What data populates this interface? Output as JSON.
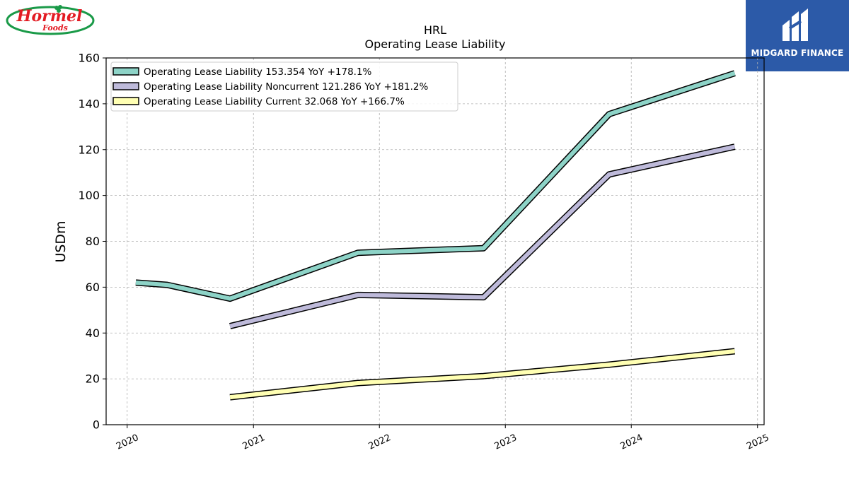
{
  "logos": {
    "left": {
      "word1": "Hormel",
      "word2": "Foods",
      "colors": {
        "ring": "#1a9a48",
        "text": "#e31b23",
        "leaf": "#1a9a48"
      }
    },
    "right": {
      "brand": "MIDGARD FINANCE",
      "background": "#2c5aa8"
    }
  },
  "chart_data": {
    "type": "line",
    "title": "HRL",
    "subtitle": "Operating Lease Liability",
    "xlabel": "",
    "ylabel": "USDm",
    "ylim": [
      0,
      160
    ],
    "yticks": [
      0,
      20,
      40,
      60,
      80,
      100,
      120,
      140,
      160
    ],
    "xlim": [
      "2019-11-01",
      "2025-01-20"
    ],
    "xticks": [
      {
        "date": "2020-01-01",
        "label": "2020"
      },
      {
        "date": "2021-01-01",
        "label": "2021"
      },
      {
        "date": "2022-01-01",
        "label": "2022"
      },
      {
        "date": "2023-01-01",
        "label": "2023"
      },
      {
        "date": "2024-01-01",
        "label": "2024"
      },
      {
        "date": "2025-01-01",
        "label": "2025"
      }
    ],
    "grid": true,
    "legend_position": "top-left",
    "series": [
      {
        "name": "Operating Lease Liability  153.354 YoY +178.1%",
        "color": "#8dd3c7",
        "points": [
          {
            "x": "2020-01-26",
            "y": 62.0
          },
          {
            "x": "2020-04-26",
            "y": 61.0
          },
          {
            "x": "2020-10-25",
            "y": 55.0
          },
          {
            "x": "2021-10-31",
            "y": 75.0
          },
          {
            "x": "2022-10-30",
            "y": 77.0
          },
          {
            "x": "2023-10-29",
            "y": 135.5
          },
          {
            "x": "2024-10-27",
            "y": 153.354
          }
        ]
      },
      {
        "name": "Operating Lease Liability Noncurrent  121.286 YoY +181.2%",
        "color": "#bebada",
        "points": [
          {
            "x": "2020-10-25",
            "y": 43.0
          },
          {
            "x": "2021-10-31",
            "y": 56.6
          },
          {
            "x": "2022-10-30",
            "y": 55.6
          },
          {
            "x": "2023-10-29",
            "y": 109.2
          },
          {
            "x": "2024-10-27",
            "y": 121.286
          }
        ]
      },
      {
        "name": "Operating Lease Liability Current  32.068 YoY +166.7%",
        "color": "#ffffb3",
        "points": [
          {
            "x": "2020-10-25",
            "y": 12.0
          },
          {
            "x": "2021-10-31",
            "y": 18.2
          },
          {
            "x": "2022-10-30",
            "y": 21.2
          },
          {
            "x": "2023-10-29",
            "y": 26.2
          },
          {
            "x": "2024-10-27",
            "y": 32.068
          }
        ]
      }
    ]
  }
}
